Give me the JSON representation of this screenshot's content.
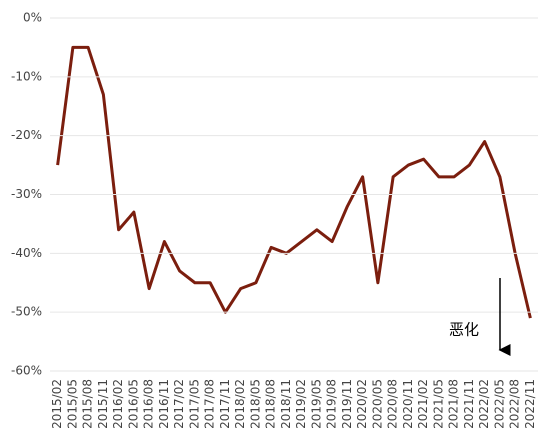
{
  "chart_data": {
    "type": "line",
    "categories": [
      "2015/02",
      "2015/05",
      "2015/08",
      "2015/11",
      "2016/02",
      "2016/05",
      "2016/08",
      "2016/11",
      "2017/02",
      "2017/05",
      "2017/08",
      "2017/11",
      "2018/02",
      "2018/05",
      "2018/08",
      "2018/11",
      "2019/02",
      "2019/05",
      "2019/08",
      "2019/11",
      "2020/02",
      "2020/05",
      "2020/08",
      "2020/11",
      "2021/02",
      "2021/05",
      "2021/08",
      "2021/11",
      "2022/02",
      "2022/05",
      "2022/08",
      "2022/11"
    ],
    "values": [
      -25,
      -5,
      -5,
      -13,
      -36,
      -33,
      -46,
      -38,
      -43,
      -45,
      -45,
      -50,
      -46,
      -45,
      -39,
      -40,
      -38,
      -36,
      -38,
      -32,
      -27,
      -45,
      -27,
      -25,
      -24,
      -27,
      -27,
      -25,
      -21,
      -27,
      -40,
      -51
    ],
    "color": "#7b1e0e",
    "ylim": [
      -60,
      0
    ],
    "yticks": [
      {
        "value": 0,
        "label": "0%"
      },
      {
        "value": -10,
        "label": "-10%"
      },
      {
        "value": -20,
        "label": "-20%"
      },
      {
        "value": -30,
        "label": "-30%"
      },
      {
        "value": -40,
        "label": "-40%"
      },
      {
        "value": -50,
        "label": "-50%"
      },
      {
        "value": -60,
        "label": "-60%"
      }
    ],
    "grid": true,
    "annotation": "恶化"
  }
}
